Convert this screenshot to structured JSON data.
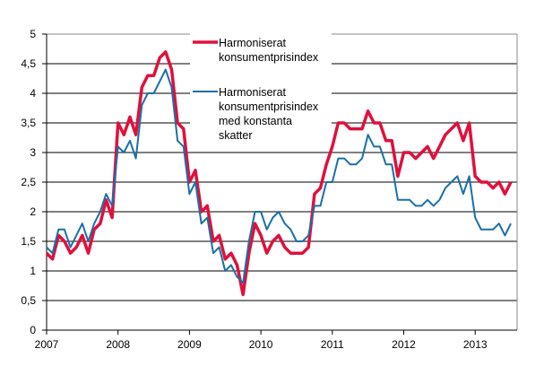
{
  "chart_data": {
    "type": "line",
    "title": "",
    "xlabel": "",
    "ylabel": "",
    "ylim": [
      0,
      5
    ],
    "yticks": [
      "0",
      "0,5",
      "1",
      "1,5",
      "2",
      "2,5",
      "3",
      "3,5",
      "4",
      "4,5",
      "5"
    ],
    "xticks": [
      "2007",
      "2008",
      "2009",
      "2010",
      "2011",
      "2012",
      "2013"
    ],
    "x_start": "2007-01",
    "x_frequency": "monthly",
    "grid": true,
    "legend_placement": "top-center",
    "series": [
      {
        "name": "Harmoniserat konsumentprisindex",
        "legend_lines": [
          "Harmoniserat",
          "konsumentprisindex"
        ],
        "color": "#e0103c",
        "values": [
          1.3,
          1.2,
          1.6,
          1.5,
          1.3,
          1.4,
          1.6,
          1.3,
          1.7,
          1.8,
          2.2,
          1.9,
          3.5,
          3.3,
          3.6,
          3.3,
          4.1,
          4.3,
          4.3,
          4.6,
          4.7,
          4.4,
          3.5,
          3.4,
          2.5,
          2.7,
          2.0,
          2.1,
          1.5,
          1.6,
          1.2,
          1.3,
          1.1,
          0.6,
          1.3,
          1.8,
          1.6,
          1.3,
          1.5,
          1.6,
          1.4,
          1.3,
          1.3,
          1.3,
          1.4,
          2.3,
          2.4,
          2.8,
          3.1,
          3.5,
          3.5,
          3.4,
          3.4,
          3.4,
          3.7,
          3.5,
          3.5,
          3.2,
          3.2,
          2.6,
          3.0,
          3.0,
          2.9,
          3.0,
          3.1,
          2.9,
          3.1,
          3.3,
          3.4,
          3.5,
          3.2,
          3.5,
          2.6,
          2.5,
          2.5,
          2.4,
          2.5,
          2.3,
          2.5
        ]
      },
      {
        "name": "Harmoniserat konsumentprisindex med konstanta skatter",
        "legend_lines": [
          "Harmoniserat",
          "konsumentprisindex",
          "med konstanta",
          "skatter"
        ],
        "color": "#1a6fa8",
        "values": [
          1.4,
          1.3,
          1.7,
          1.7,
          1.4,
          1.6,
          1.8,
          1.5,
          1.8,
          2.0,
          2.3,
          2.1,
          3.1,
          3.0,
          3.2,
          2.9,
          3.8,
          4.0,
          4.0,
          4.2,
          4.4,
          4.1,
          3.2,
          3.1,
          2.3,
          2.5,
          1.8,
          1.9,
          1.3,
          1.4,
          1.0,
          1.1,
          0.9,
          0.8,
          1.5,
          2.0,
          2.0,
          1.7,
          1.9,
          2.0,
          1.8,
          1.7,
          1.5,
          1.5,
          1.6,
          2.1,
          2.1,
          2.5,
          2.5,
          2.9,
          2.9,
          2.8,
          2.8,
          2.9,
          3.3,
          3.1,
          3.1,
          2.8,
          2.8,
          2.2,
          2.2,
          2.2,
          2.1,
          2.1,
          2.2,
          2.1,
          2.2,
          2.4,
          2.5,
          2.6,
          2.3,
          2.6,
          1.9,
          1.7,
          1.7,
          1.7,
          1.8,
          1.6,
          1.8
        ]
      }
    ]
  }
}
